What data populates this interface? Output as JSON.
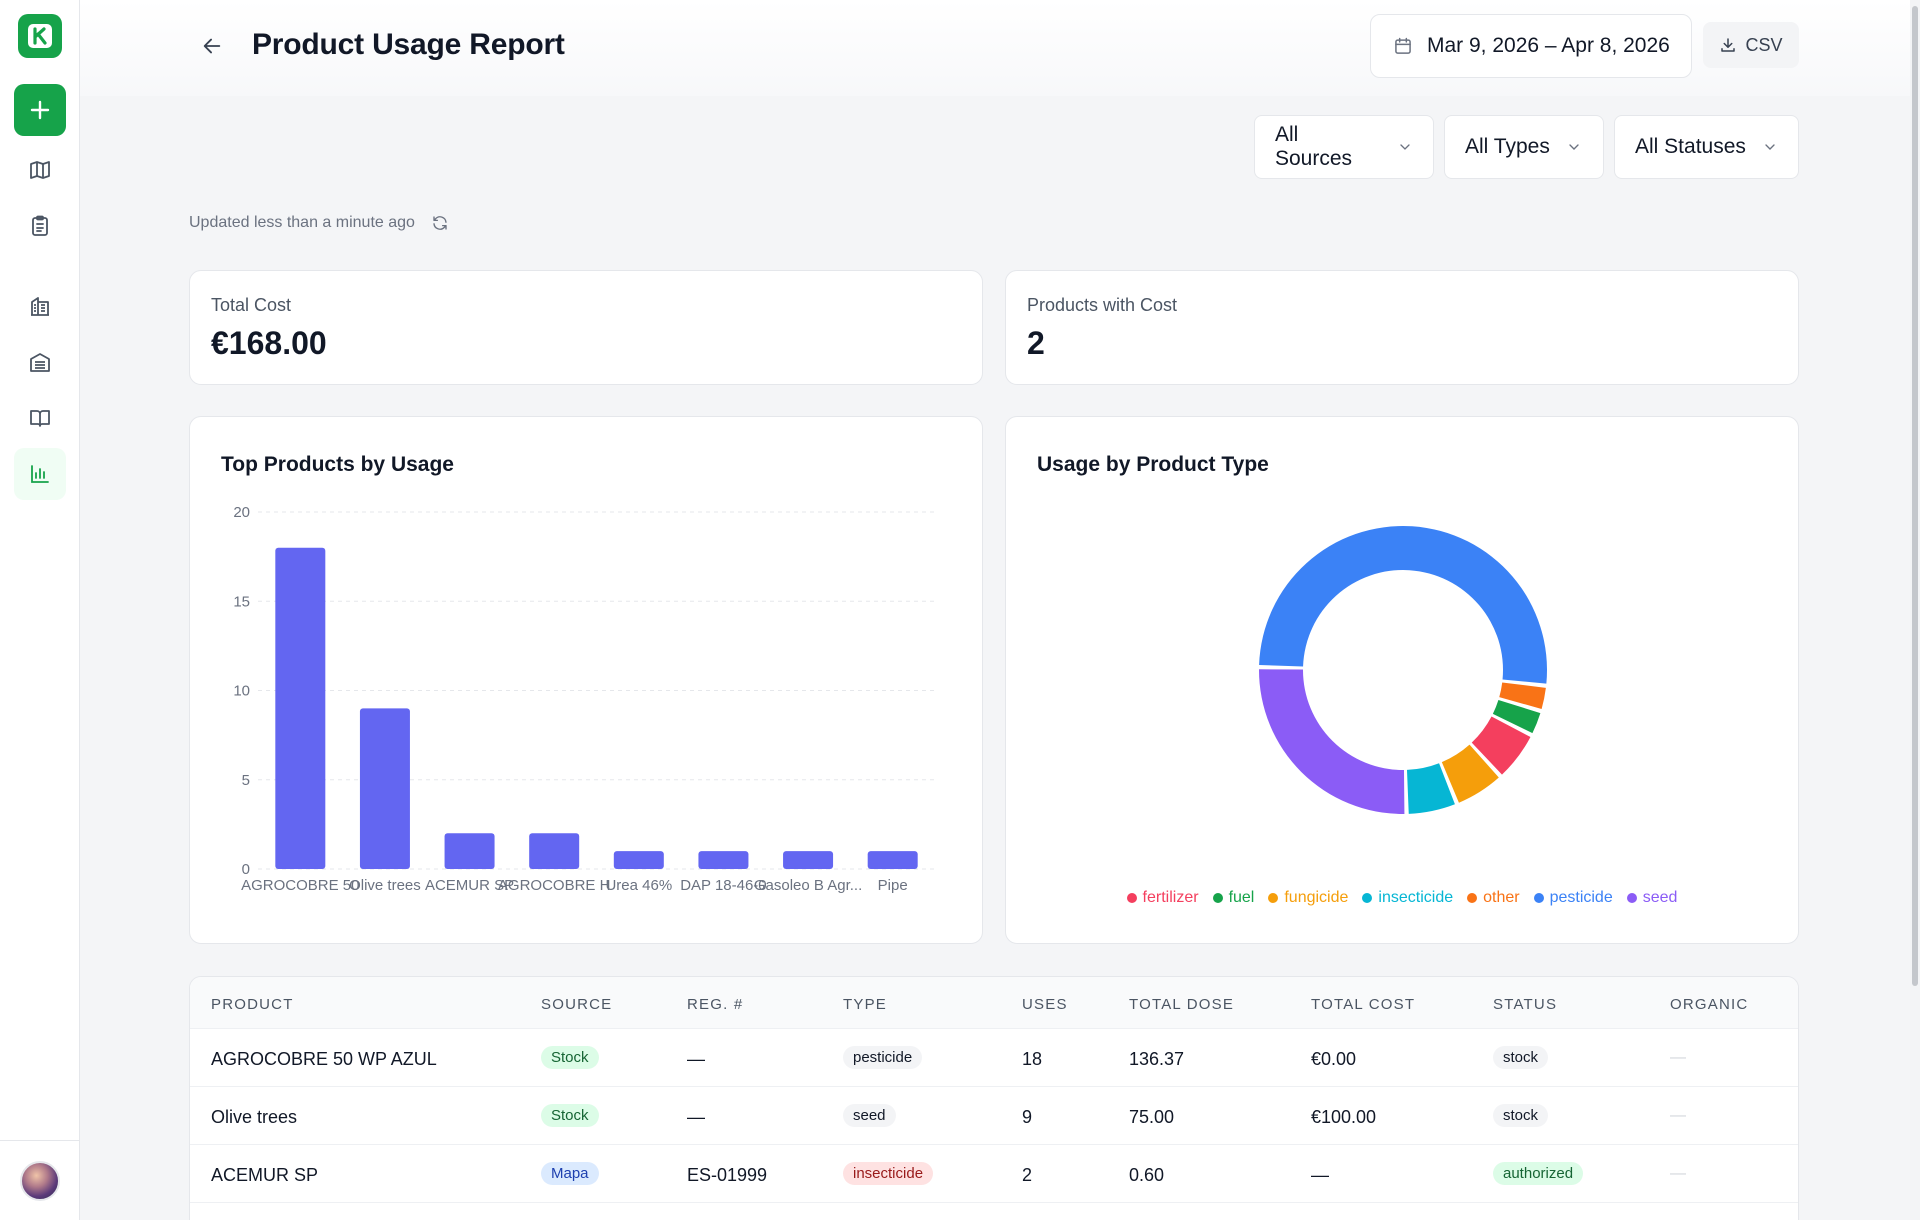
{
  "header": {
    "title": "Product Usage Report",
    "date_range": "Mar 9, 2026 – Apr 8, 2026",
    "csv_label": "CSV"
  },
  "filters": [
    {
      "label": "All Sources"
    },
    {
      "label": "All Types"
    },
    {
      "label": "All Statuses"
    }
  ],
  "updated_text": "Updated less than a minute ago",
  "stats": {
    "total_cost_label": "Total Cost",
    "total_cost_value": "€168.00",
    "products_with_cost_label": "Products with Cost",
    "products_with_cost_value": "2"
  },
  "bar_chart_title": "Top Products by Usage",
  "donut_chart_title": "Usage by Product Type",
  "chart_data": [
    {
      "type": "bar",
      "title": "Top Products by Usage",
      "categories": [
        "AGROCOBRE 50",
        "Olive trees",
        "ACEMUR SP",
        "AGROCOBRE H",
        "Urea 46%",
        "DAP 18-46-0",
        "Gasoleo B Agr...",
        "Pipe"
      ],
      "values": [
        18,
        9,
        2,
        2,
        1,
        1,
        1,
        1
      ],
      "ylim": [
        0,
        20
      ],
      "yticks": [
        0,
        5,
        10,
        15,
        20
      ],
      "grid": true,
      "color": "#6366f1"
    },
    {
      "type": "pie",
      "title": "Usage by Product Type",
      "labels": [
        "fertilizer",
        "fuel",
        "fungicide",
        "insecticide",
        "other",
        "pesticide",
        "seed"
      ],
      "values": [
        2,
        1,
        2,
        2,
        1,
        18,
        9
      ],
      "colors": [
        "#f43f5e",
        "#16a34a",
        "#f59e0b",
        "#06b6d4",
        "#f97316",
        "#3b82f6",
        "#8b5cf6"
      ],
      "legend_position": "bottom"
    }
  ],
  "table": {
    "headers": [
      "PRODUCT",
      "SOURCE",
      "REG. #",
      "TYPE",
      "USES",
      "TOTAL DOSE",
      "TOTAL COST",
      "STATUS",
      "ORGANIC"
    ],
    "rows": [
      {
        "product": "AGROCOBRE 50 WP AZUL",
        "source": "Stock",
        "reg": "—",
        "type": "pesticide",
        "uses": "18",
        "dose": "136.37",
        "cost": "€0.00",
        "status": "stock",
        "organic": "—"
      },
      {
        "product": "Olive trees",
        "source": "Stock",
        "reg": "—",
        "type": "seed",
        "uses": "9",
        "dose": "75.00",
        "cost": "€100.00",
        "status": "stock",
        "organic": "—"
      },
      {
        "product": "ACEMUR SP",
        "source": "Mapa",
        "reg": "ES-01999",
        "type": "insecticide",
        "uses": "2",
        "dose": "0.60",
        "cost": "—",
        "status": "authorized",
        "organic": "—"
      }
    ]
  }
}
